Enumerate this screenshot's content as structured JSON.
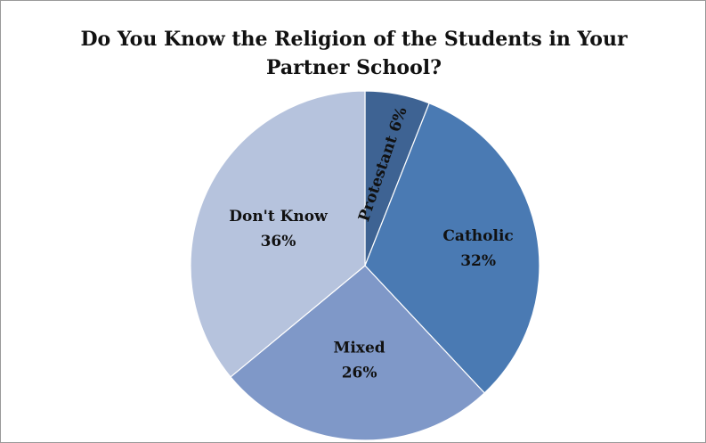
{
  "chart_data": {
    "type": "pie",
    "title": "Do You Know the Religion of the Students in Your Partner School?",
    "categories": [
      "Protestant",
      "Catholic",
      "Mixed",
      "Don't Know"
    ],
    "values": [
      6,
      32,
      26,
      36
    ],
    "labels": [
      "Protestant 6%",
      "Catholic",
      "Mixed",
      "Don't Know"
    ],
    "percent_labels": [
      "",
      "32%",
      "26%",
      "36%"
    ],
    "colors": [
      "#3e6393",
      "#4a7ab3",
      "#7f98c8",
      "#b6c3dd"
    ],
    "unit": "%",
    "legend": "none"
  }
}
